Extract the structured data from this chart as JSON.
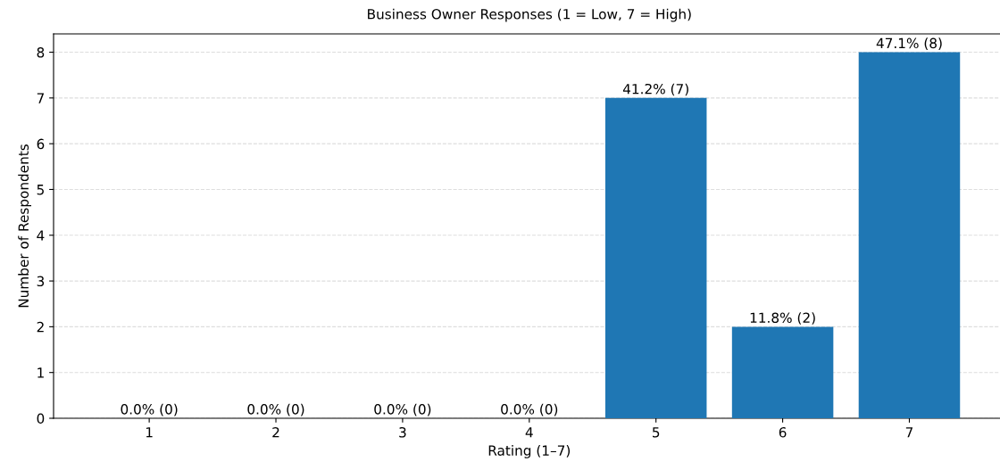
{
  "chart_data": {
    "type": "bar",
    "title": "Business Owner Responses (1 = Low, 7 = High)",
    "xlabel": "Rating (1–7)",
    "ylabel": "Number of Respondents",
    "categories": [
      "1",
      "2",
      "3",
      "4",
      "5",
      "6",
      "7"
    ],
    "values": [
      0,
      0,
      0,
      0,
      7,
      2,
      8
    ],
    "value_labels": [
      "0.0% (0)",
      "0.0% (0)",
      "0.0% (0)",
      "0.0% (0)",
      "41.2% (7)",
      "11.8% (2)",
      "47.1% (8)"
    ],
    "color": "#1f77b4",
    "ylim": [
      0,
      8.4
    ],
    "yticks": [
      0,
      1,
      2,
      3,
      4,
      5,
      6,
      7,
      8
    ],
    "grid": "y"
  }
}
